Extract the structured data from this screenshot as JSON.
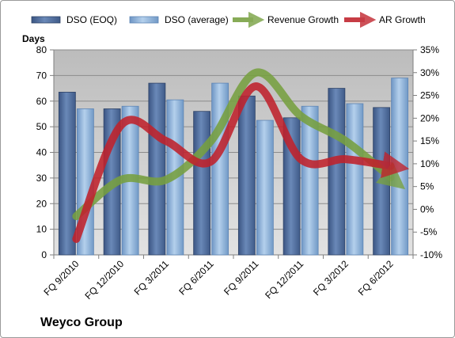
{
  "chart_data": {
    "type": "bar",
    "ylabel": "Days",
    "categories": [
      "FQ 9/2010",
      "FQ 12/2010",
      "FQ 3/2011",
      "FQ 6/2011",
      "FQ 9/2011",
      "FQ 12/2011",
      "FQ 3/2012",
      "FQ 6/2012"
    ],
    "ylim": [
      0,
      80
    ],
    "y2lim": [
      -10,
      35
    ],
    "yticks": [
      "0",
      "10",
      "20",
      "30",
      "40",
      "50",
      "60",
      "70",
      "80"
    ],
    "y2ticks": [
      "-10%",
      "-5%",
      "0%",
      "5%",
      "10%",
      "15%",
      "20%",
      "25%",
      "30%",
      "35%"
    ],
    "legend_position": "top",
    "grid": true,
    "series": [
      {
        "name": "DSO (EOQ)",
        "kind": "bar",
        "axis": "left",
        "color": "#4f6e9e",
        "values": [
          63.5,
          57,
          67,
          56,
          62,
          53.5,
          65,
          57.5
        ]
      },
      {
        "name": "DSO (average)",
        "kind": "bar",
        "axis": "left",
        "color": "#8fb4dc",
        "values": [
          57,
          58,
          60.5,
          67,
          52.5,
          58,
          59,
          69
        ]
      },
      {
        "name": "Revenue Growth",
        "kind": "line",
        "axis": "right",
        "color": "#77a040",
        "values": [
          -1.5,
          6.5,
          6.5,
          15,
          30,
          20.5,
          15,
          7
        ]
      },
      {
        "name": "AR Growth",
        "kind": "line",
        "axis": "right",
        "color": "#c0222c",
        "values": [
          -6.5,
          18.5,
          15,
          10.5,
          27,
          11,
          11,
          9.5
        ]
      }
    ]
  },
  "company_label": "Weyco Group"
}
